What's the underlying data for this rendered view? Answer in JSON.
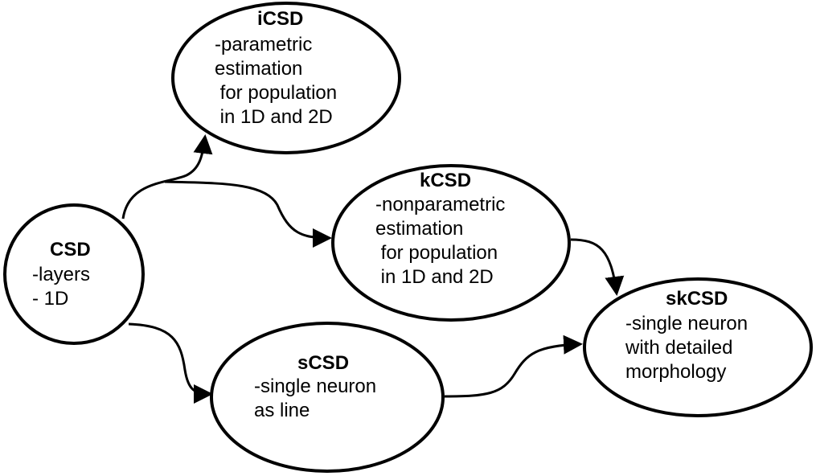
{
  "nodes": {
    "csd": {
      "title": "CSD",
      "lines": [
        "-layers",
        "- 1D"
      ]
    },
    "icsd": {
      "title": "iCSD",
      "lines": [
        "-parametric",
        "estimation",
        " for population",
        " in 1D and 2D"
      ]
    },
    "kcsd": {
      "title": "kCSD",
      "lines": [
        "-nonparametric",
        "estimation",
        " for population",
        " in 1D and 2D"
      ]
    },
    "scsd": {
      "title": "sCSD",
      "lines": [
        "-single neuron",
        "as line"
      ]
    },
    "skcsd": {
      "title": "skCSD",
      "lines": [
        "-single neuron",
        "with detailed",
        "morphology"
      ]
    }
  },
  "edges": [
    {
      "from": "CSD",
      "to": "iCSD"
    },
    {
      "from": "CSD",
      "to": "kCSD"
    },
    {
      "from": "CSD",
      "to": "sCSD"
    },
    {
      "from": "kCSD",
      "to": "skCSD"
    },
    {
      "from": "sCSD",
      "to": "skCSD"
    }
  ],
  "colors": {
    "stroke": "#000000",
    "fill": "#ffffff"
  }
}
